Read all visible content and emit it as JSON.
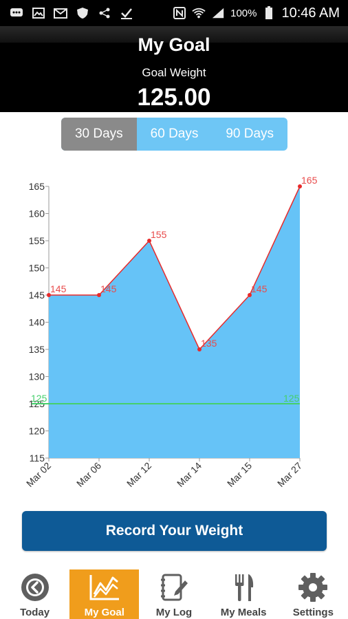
{
  "status_bar": {
    "battery_percent": "100%",
    "time": "10:46 AM",
    "icons": [
      "chat-icon",
      "image-icon",
      "mail-icon",
      "shield-icon",
      "share-icon",
      "check-icon",
      "nfc-icon",
      "wifi-icon",
      "signal-icon",
      "battery-icon"
    ]
  },
  "header": {
    "title": "My Goal",
    "goal_label": "Goal Weight",
    "goal_value": "125.00"
  },
  "tabs": [
    {
      "label": "30 Days",
      "active": true
    },
    {
      "label": "60 Days",
      "active": false
    },
    {
      "label": "90 Days",
      "active": false
    }
  ],
  "chart_data": {
    "type": "area",
    "categories": [
      "Mar 02",
      "Mar 06",
      "Mar 12",
      "Mar 14",
      "Mar 15",
      "Mar 27"
    ],
    "series": [
      {
        "values": [
          145,
          145,
          155,
          135,
          145,
          165
        ],
        "color": "#e82a2a",
        "fill": "#66c3f7"
      }
    ],
    "goal_line": {
      "value": 125,
      "label": "125",
      "color": "#45d06b"
    },
    "ylim": [
      115,
      165
    ],
    "yticks": [
      115,
      120,
      125,
      130,
      135,
      140,
      145,
      150,
      155,
      160,
      165
    ],
    "title": "",
    "xlabel": "",
    "ylabel": ""
  },
  "record_button": {
    "label": "Record Your Weight"
  },
  "bottom_nav": [
    {
      "label": "Today",
      "icon": "back-circle-icon",
      "active": false
    },
    {
      "label": "My Goal",
      "icon": "chart-icon",
      "active": true
    },
    {
      "label": "My Log",
      "icon": "notebook-icon",
      "active": false
    },
    {
      "label": "My Meals",
      "icon": "fork-knife-icon",
      "active": false
    },
    {
      "label": "Settings",
      "icon": "gear-icon",
      "active": false
    }
  ],
  "colors": {
    "accent": "#f09d1c",
    "button": "#0e5a96",
    "tab_inactive": "#6ec6f5",
    "tab_active": "#8a8a8a",
    "area_fill": "#66c3f7",
    "line": "#e82a2a",
    "goal_line": "#45d06b"
  }
}
